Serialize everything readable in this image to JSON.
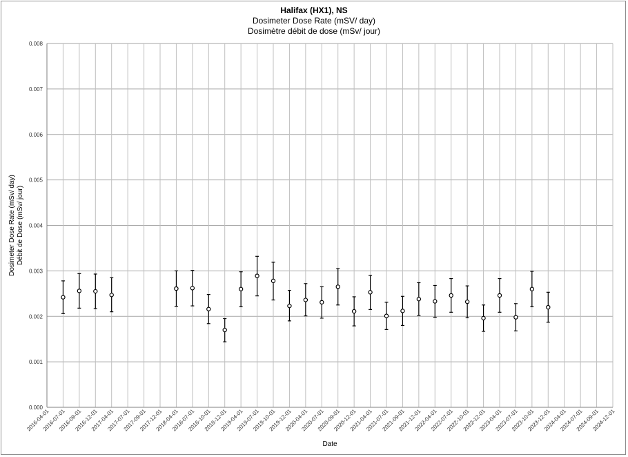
{
  "chart_data": {
    "type": "scatter",
    "title": "Halifax (HX1), NS",
    "subtitle_1": "Dosimeter Dose Rate (mSV/ day)",
    "subtitle_2": "Dosimètre débit de dose (mSv/ jour)",
    "xlabel": "Date",
    "ylabel_1": "Dosimeter Dose Rate (mSv/ day)",
    "ylabel_2": "Débit de Dose (mSv/ jour)",
    "ylim": [
      0.0,
      0.008
    ],
    "y_ticks": [
      "0.000",
      "0.001",
      "0.002",
      "0.003",
      "0.004",
      "0.005",
      "0.006",
      "0.007",
      "0.008"
    ],
    "x_ticks": [
      "2016-04-01",
      "2016-07-01",
      "2016-09-01",
      "2016-12-01",
      "2017-04-01",
      "2017-07-01",
      "2017-09-01",
      "2017-12-01",
      "2018-04-01",
      "2018-07-01",
      "2018-10-01",
      "2018-12-01",
      "2019-04-01",
      "2019-07-01",
      "2019-10-01",
      "2019-12-01",
      "2020-04-01",
      "2020-07-01",
      "2020-09-01",
      "2020-12-01",
      "2021-04-01",
      "2021-07-01",
      "2021-09-01",
      "2021-12-01",
      "2022-04-01",
      "2022-07-01",
      "2022-10-01",
      "2022-12-01",
      "2023-04-01",
      "2023-07-01",
      "2023-10-01",
      "2023-12-01",
      "2024-04-01",
      "2024-07-01",
      "2024-09-01",
      "2024-12-01"
    ],
    "grid": true,
    "error_bars": true,
    "points": [
      {
        "x": "2016-07-01",
        "y": 0.00242,
        "low": 0.00206,
        "high": 0.00278
      },
      {
        "x": "2016-09-01",
        "y": 0.00256,
        "low": 0.00218,
        "high": 0.00294
      },
      {
        "x": "2016-12-01",
        "y": 0.00255,
        "low": 0.00217,
        "high": 0.00293
      },
      {
        "x": "2017-04-01",
        "y": 0.00247,
        "low": 0.0021,
        "high": 0.00285
      },
      {
        "x": "2018-04-01",
        "y": 0.00261,
        "low": 0.00222,
        "high": 0.003
      },
      {
        "x": "2018-07-01",
        "y": 0.00262,
        "low": 0.00223,
        "high": 0.00301
      },
      {
        "x": "2018-10-01",
        "y": 0.00216,
        "low": 0.00184,
        "high": 0.00248
      },
      {
        "x": "2018-12-01",
        "y": 0.0017,
        "low": 0.00144,
        "high": 0.00195
      },
      {
        "x": "2019-04-01",
        "y": 0.0026,
        "low": 0.00221,
        "high": 0.00298
      },
      {
        "x": "2019-07-01",
        "y": 0.00289,
        "low": 0.00245,
        "high": 0.00332
      },
      {
        "x": "2019-10-01",
        "y": 0.00278,
        "low": 0.00236,
        "high": 0.00319
      },
      {
        "x": "2019-12-01",
        "y": 0.00223,
        "low": 0.0019,
        "high": 0.00257
      },
      {
        "x": "2020-04-01",
        "y": 0.00236,
        "low": 0.00201,
        "high": 0.00272
      },
      {
        "x": "2020-07-01",
        "y": 0.00231,
        "low": 0.00196,
        "high": 0.00265
      },
      {
        "x": "2020-09-01",
        "y": 0.00265,
        "low": 0.00225,
        "high": 0.00305
      },
      {
        "x": "2020-12-01",
        "y": 0.00211,
        "low": 0.00179,
        "high": 0.00243
      },
      {
        "x": "2021-04-01",
        "y": 0.00253,
        "low": 0.00215,
        "high": 0.0029
      },
      {
        "x": "2021-07-01",
        "y": 0.00201,
        "low": 0.00171,
        "high": 0.00231
      },
      {
        "x": "2021-09-01",
        "y": 0.00212,
        "low": 0.0018,
        "high": 0.00244
      },
      {
        "x": "2021-12-01",
        "y": 0.00238,
        "low": 0.00202,
        "high": 0.00274
      },
      {
        "x": "2022-04-01",
        "y": 0.00233,
        "low": 0.00198,
        "high": 0.00268
      },
      {
        "x": "2022-07-01",
        "y": 0.00246,
        "low": 0.00209,
        "high": 0.00283
      },
      {
        "x": "2022-10-01",
        "y": 0.00232,
        "low": 0.00197,
        "high": 0.00267
      },
      {
        "x": "2022-12-01",
        "y": 0.00196,
        "low": 0.00167,
        "high": 0.00225
      },
      {
        "x": "2023-04-01",
        "y": 0.00246,
        "low": 0.00209,
        "high": 0.00283
      },
      {
        "x": "2023-07-01",
        "y": 0.00198,
        "low": 0.00168,
        "high": 0.00228
      },
      {
        "x": "2023-10-01",
        "y": 0.0026,
        "low": 0.00221,
        "high": 0.00299
      },
      {
        "x": "2023-12-01",
        "y": 0.0022,
        "low": 0.00187,
        "high": 0.00253
      }
    ]
  }
}
